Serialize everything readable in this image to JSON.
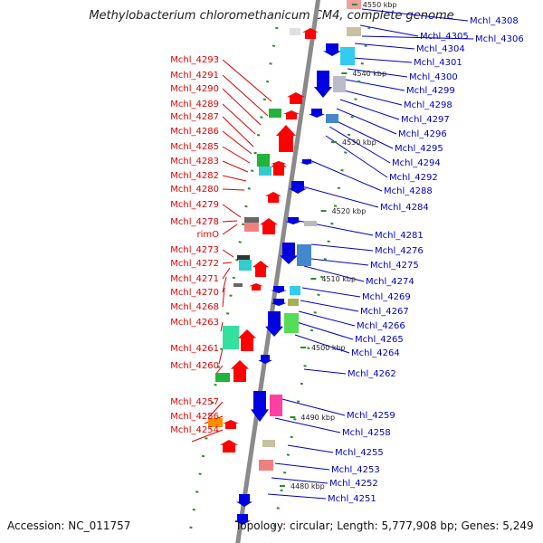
{
  "title": "Methylobacterium chloromethanicum CM4, complete genome",
  "footer": {
    "accession": "Accession: NC_011757",
    "topology": "Topology: circular; Length: 5,777,908 bp; Genes: 5,249"
  },
  "scale_marks": [
    "4550 kbp",
    "4540 kbp",
    "4530 kbp",
    "4520 kbp",
    "4510 kbp",
    "4500 kbp",
    "4490 kbp",
    "4480 kbp"
  ],
  "left_genes": [
    "Mchl_4293",
    "Mchl_4291",
    "Mchl_4290",
    "Mchl_4289",
    "Mchl_4287",
    "Mchl_4286",
    "Mchl_4285",
    "Mchl_4283",
    "Mchl_4282",
    "Mchl_4280",
    "Mchl_4279",
    "Mchl_4278",
    "rimO",
    "Mchl_4273",
    "Mchl_4272",
    "Mchl_4271",
    "Mchl_4270",
    "Mchl_4268",
    "Mchl_4263",
    "Mchl_4261",
    "Mchl_4260",
    "Mchl_4257",
    "Mchl_4256",
    "Mchl_4254"
  ],
  "right_genes": [
    "Mchl_4308",
    "Mchl_4305",
    "Mchl_4306",
    "Mchl_4304",
    "Mchl_4301",
    "Mchl_4300",
    "Mchl_4299",
    "Mchl_4298",
    "Mchl_4297",
    "Mchl_4296",
    "Mchl_4295",
    "Mchl_4294",
    "Mchl_4292",
    "Mchl_4288",
    "Mchl_4284",
    "Mchl_4281",
    "Mchl_4276",
    "Mchl_4275",
    "Mchl_4274",
    "Mchl_4269",
    "Mchl_4267",
    "Mchl_4266",
    "Mchl_4265",
    "Mchl_4264",
    "Mchl_4262",
    "Mchl_4259",
    "Mchl_4258",
    "Mchl_4255",
    "Mchl_4253",
    "Mchl_4252",
    "Mchl_4251"
  ],
  "colors": {
    "forward_label": "#e00000",
    "reverse_label": "#0000c8",
    "backbone": "#8a8a8a",
    "gc_dots": "#2e8b2e"
  }
}
